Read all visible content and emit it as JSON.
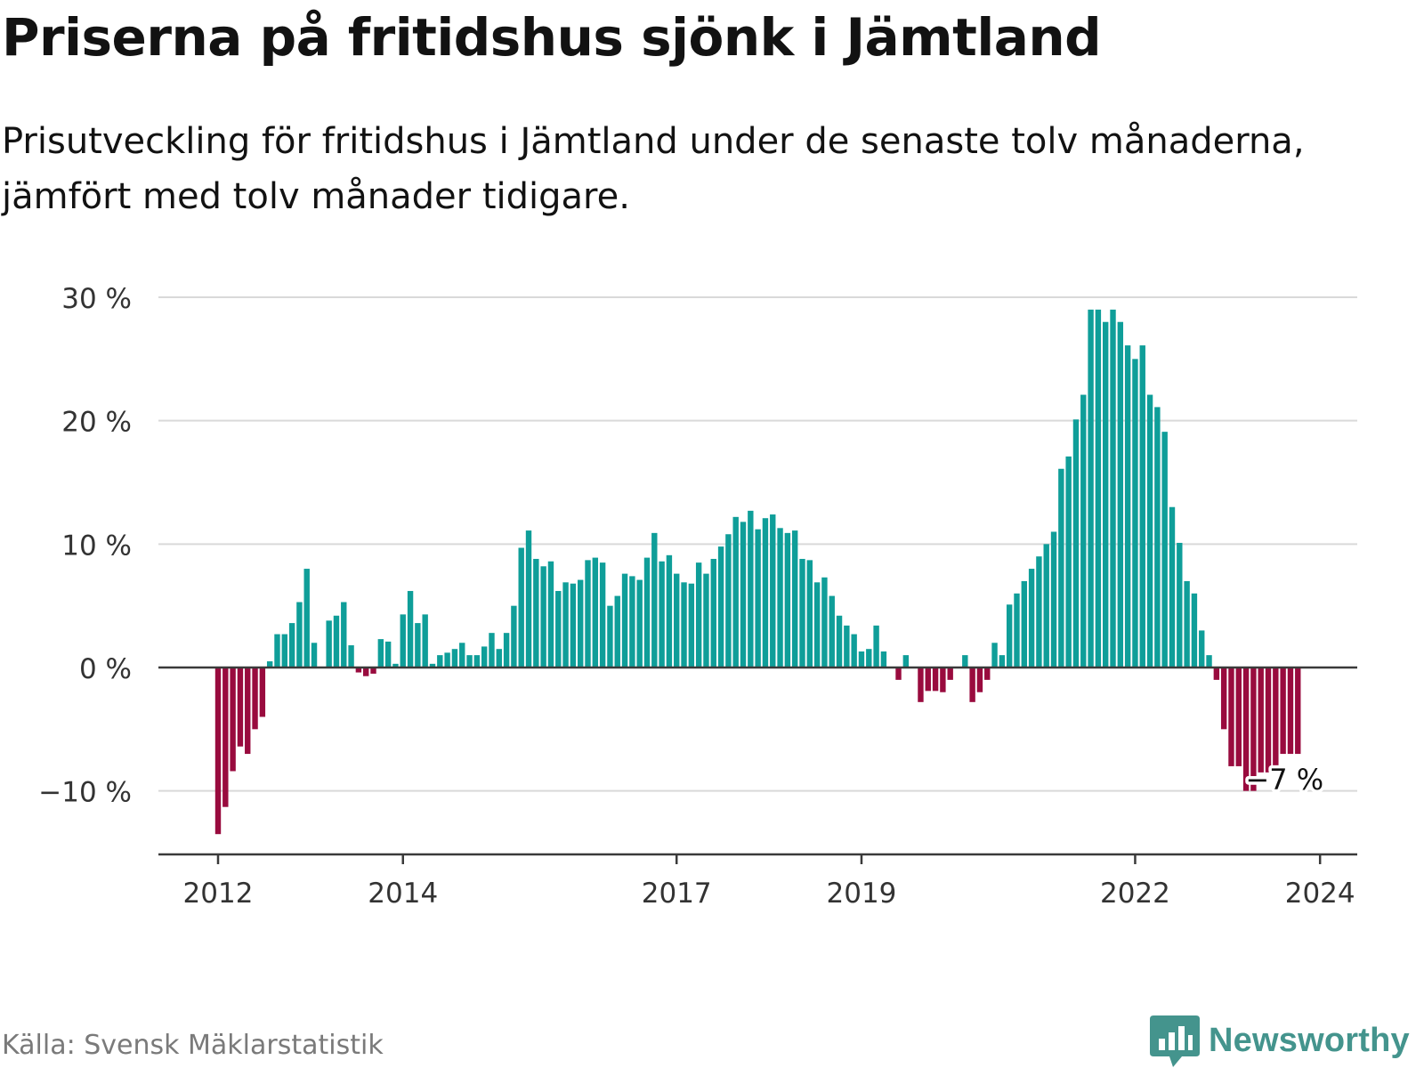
{
  "header": {
    "title": "Priserna på fritidshus sjönk i Jämtland",
    "subtitle": "Prisutveckling för fritidshus i Jämtland under de senaste tolv månaderna, jämfört med tolv månader tidigare."
  },
  "footer": {
    "source": "Källa: Svensk Mäklarstatistik",
    "brand": "Newsworthy",
    "brand_icon": "bar-chart-speech-bubble-icon"
  },
  "colors": {
    "positive": "#0f9e99",
    "negative": "#990b3e",
    "grid": "#d9d9d9",
    "axis": "#3a3a3a",
    "brand": "#44948d"
  },
  "chart_data": {
    "type": "bar",
    "title": "Priserna på fritidshus sjönk i Jämtland",
    "xlabel": "",
    "ylabel": "",
    "ylim": [
      -15.5,
      31
    ],
    "yticks": [
      30,
      20,
      10,
      0,
      -10
    ],
    "ytick_labels": [
      "30 %",
      "20 %",
      "10 %",
      "0 %",
      "−10 %"
    ],
    "xticks": [
      {
        "label": "2012",
        "index": 0
      },
      {
        "label": "2014",
        "index": 25
      },
      {
        "label": "2017",
        "index": 62
      },
      {
        "label": "2019",
        "index": 87
      },
      {
        "label": "2022",
        "index": 124
      },
      {
        "label": "2024",
        "index": 149
      }
    ],
    "grid": true,
    "last_value_label": "−7 %",
    "unit": "%",
    "series": [
      {
        "name": "Prisutveckling (%)",
        "values": [
          -13.5,
          -11.3,
          -8.4,
          -6.4,
          -7,
          -5,
          -4,
          0.5,
          2.7,
          2.7,
          3.6,
          5.3,
          8,
          2,
          0,
          3.8,
          4.2,
          5.3,
          1.8,
          -0.4,
          -0.7,
          -0.5,
          2.3,
          2.1,
          0.3,
          4.3,
          6.2,
          3.6,
          4.3,
          0.3,
          1,
          1.2,
          1.5,
          2,
          1,
          1,
          1.7,
          2.8,
          1.5,
          2.8,
          5,
          9.7,
          11.1,
          8.8,
          8.2,
          8.6,
          6.2,
          6.9,
          6.8,
          7.1,
          8.7,
          8.9,
          8.5,
          5,
          5.8,
          7.6,
          7.4,
          7.1,
          8.9,
          10.9,
          8.6,
          9.1,
          7.6,
          6.9,
          6.8,
          8.5,
          7.6,
          8.8,
          9.8,
          10.8,
          12.2,
          11.8,
          12.7,
          11.2,
          12.1,
          12.4,
          11.3,
          10.9,
          11.1,
          8.8,
          8.7,
          6.9,
          7.3,
          5.8,
          4.2,
          3.4,
          2.7,
          1.3,
          1.5,
          3.4,
          1.3,
          0,
          -1,
          1,
          0,
          -2.8,
          -1.9,
          -1.9,
          -2,
          -1,
          0,
          1,
          -2.8,
          -2,
          -1,
          2,
          1,
          5.1,
          6,
          7,
          8,
          9,
          10,
          11,
          16.1,
          17.1,
          20.1,
          22.1,
          29,
          29,
          28,
          29,
          28,
          26.1,
          25,
          26.1,
          22.1,
          21.1,
          19.1,
          13,
          10.1,
          7,
          6,
          3,
          1,
          -1,
          -5,
          -8,
          -8,
          -10,
          -10,
          -8.5,
          -8.5,
          -8,
          -7,
          -7,
          -7
        ]
      }
    ]
  }
}
